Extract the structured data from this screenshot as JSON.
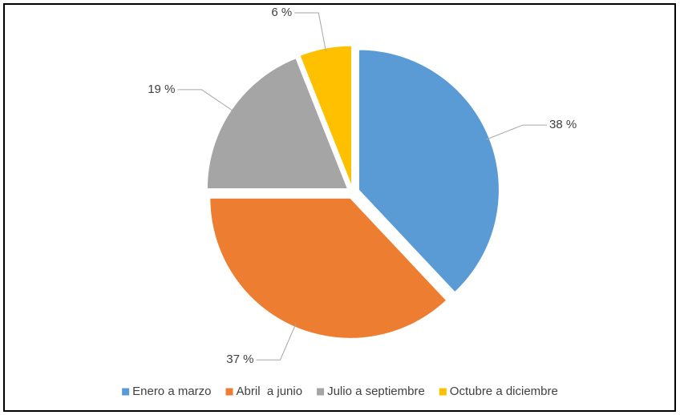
{
  "chart_data": {
    "type": "pie",
    "categories": [
      "Enero a marzo",
      "Abril  a junio",
      "Julio a septiembre",
      "Octubre a diciembre"
    ],
    "values": [
      38,
      37,
      19,
      6
    ],
    "value_labels": [
      "38 %",
      "37 %",
      "19 %",
      "6 %"
    ],
    "colors": [
      "#5b9bd5",
      "#ed7d31",
      "#a5a5a5",
      "#ffc000"
    ],
    "legend": "bottom"
  }
}
